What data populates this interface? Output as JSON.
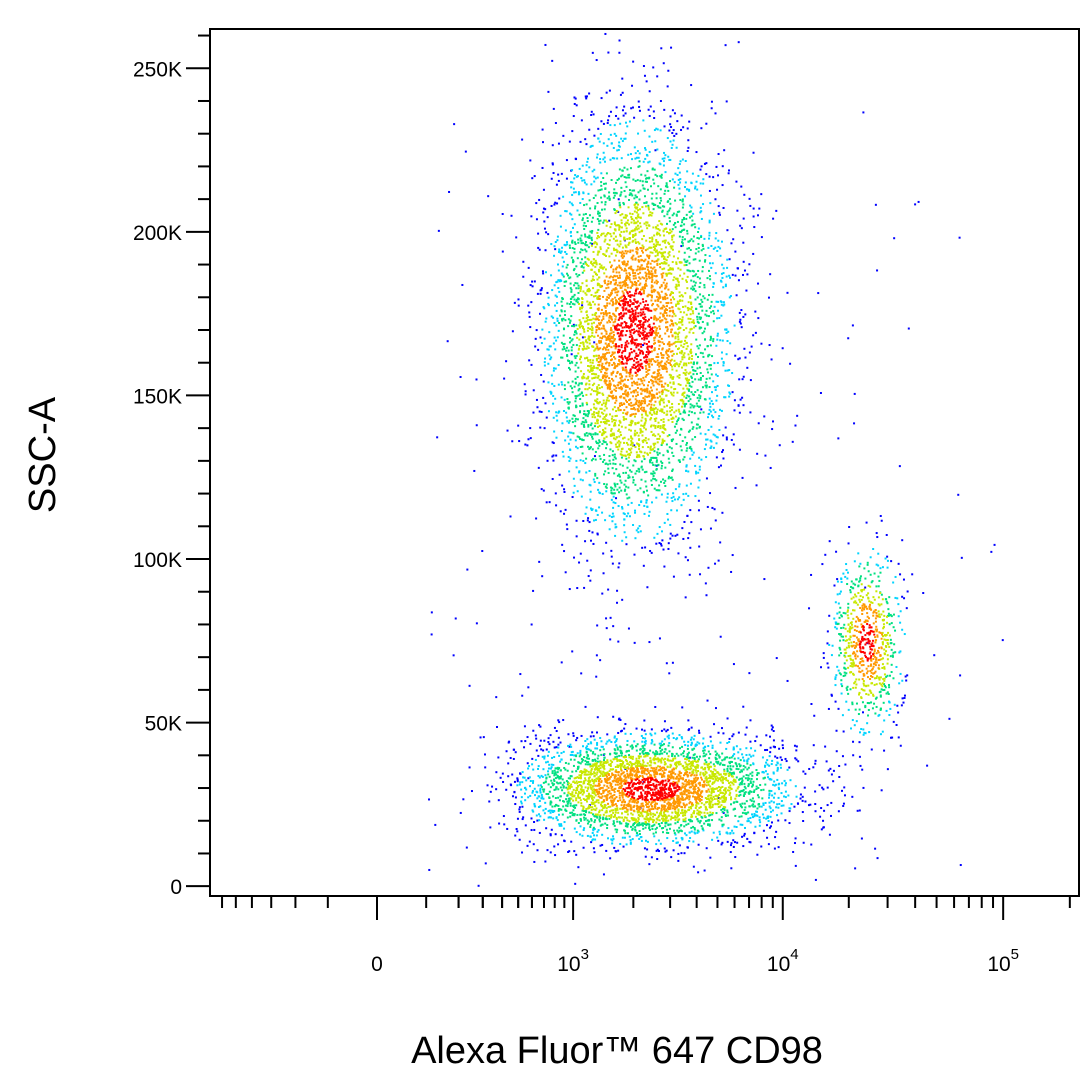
{
  "chart_data": {
    "type": "scatter",
    "style": "flow-cytometry pseudocolor density dot plot",
    "xlabel": "Alexa Fluor™ 647  CD98",
    "ylabel": "SSC-A",
    "x_scale": "biexponential",
    "y_scale": "linear",
    "ylim": [
      -3000,
      262000
    ],
    "xlim": [
      -700,
      220000
    ],
    "x_ticks": [
      {
        "value": 0,
        "label": "0"
      },
      {
        "value": 1000,
        "label": "10",
        "exponent": "3"
      },
      {
        "value": 10000,
        "label": "10",
        "exponent": "4"
      },
      {
        "value": 100000,
        "label": "10",
        "exponent": "5"
      }
    ],
    "y_ticks": [
      {
        "value": 0,
        "label": "0"
      },
      {
        "value": 50000,
        "label": "50K"
      },
      {
        "value": 100000,
        "label": "100K"
      },
      {
        "value": 150000,
        "label": "150K"
      },
      {
        "value": 200000,
        "label": "200K"
      },
      {
        "value": 250000,
        "label": "250K"
      }
    ],
    "grid": false,
    "legend": "none",
    "density_colormap": [
      "#0000ff",
      "#00d4ff",
      "#00e080",
      "#c8e800",
      "#ff9900",
      "#ff0000"
    ],
    "populations": [
      {
        "x_center": 2000,
        "y_center": 170000,
        "x_spread_decades": 0.22,
        "y_spread": 30000,
        "share": 0.52
      },
      {
        "x_center": 2400,
        "y_center": 30000,
        "x_spread_decades": 0.32,
        "y_spread": 8000,
        "share": 0.38
      },
      {
        "x_center": 24000,
        "y_center": 75000,
        "x_spread_decades": 0.08,
        "y_spread": 14000,
        "share": 0.08
      }
    ]
  }
}
